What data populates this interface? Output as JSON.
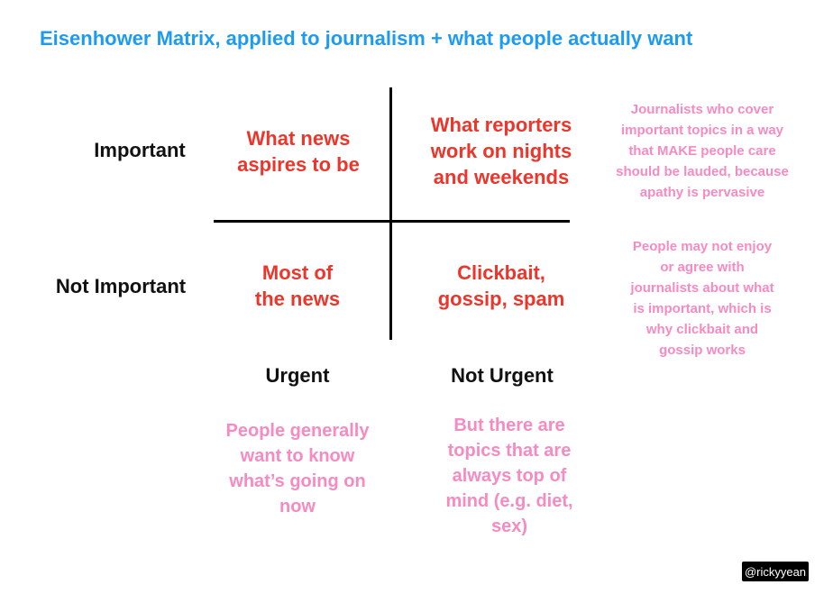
{
  "title": "Eisenhower Matrix, applied to journalism + what people actually want",
  "colors": {
    "title_blue": "#1D9BF0",
    "quadrant_red": "#EC352B",
    "annotation_pink": "#F78BC1",
    "label_black": "#111111",
    "badge_background": "#000000",
    "badge_text": "#FFFFFF"
  },
  "matrix": {
    "row_labels": [
      "Important",
      "Not Important"
    ],
    "col_labels": [
      "Urgent",
      "Not Urgent"
    ],
    "quadrants": {
      "important_urgent": "What news\naspires to be",
      "important_not_urgent": "What reporters\nwork on nights\nand weekends",
      "not_important_urgent": "Most of\nthe news",
      "not_important_not_urgent": "Clickbait,\ngossip, spam"
    }
  },
  "annotations": {
    "top_right": "Journalists who cover\nimportant topics in a way\nthat MAKE people care\nshould be lauded, because\napathy is pervasive",
    "middle_right": "People may not enjoy\nor agree with\njournalists about what\nis important, which is\nwhy clickbait and\ngossip works",
    "bottom_left": "People generally\nwant to know\nwhat’s going on\nnow",
    "bottom_right": "But there are\ntopics that are\nalways top of\nmind (e.g. diet,\nsex)"
  },
  "badge": "@rickyyean"
}
